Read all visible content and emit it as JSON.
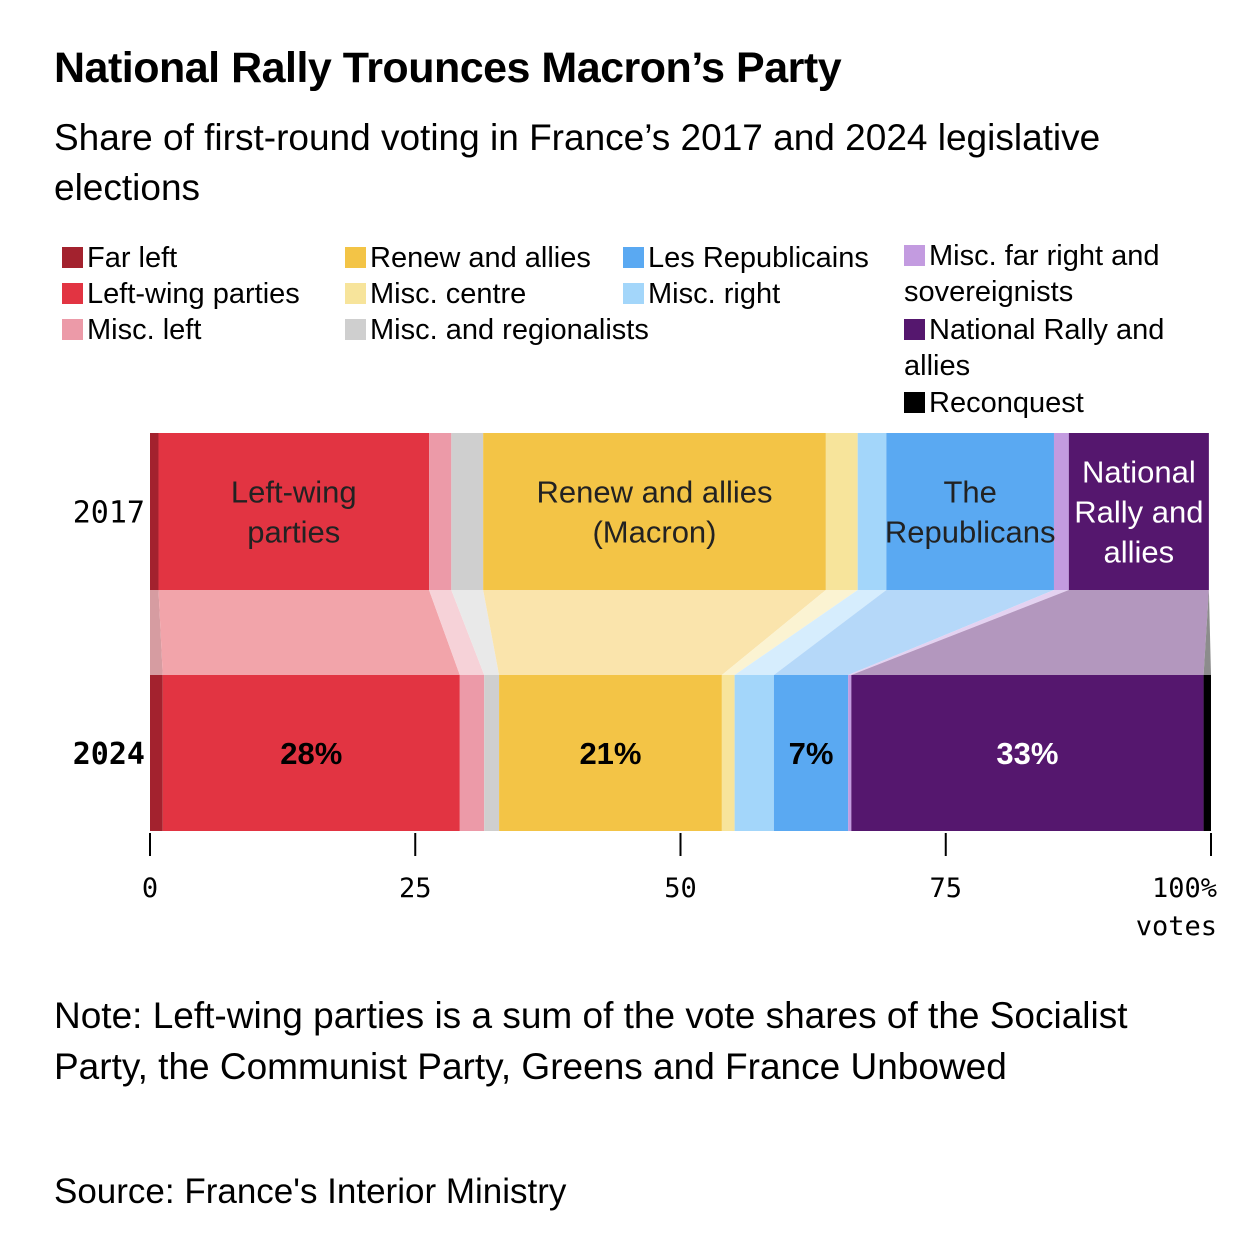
{
  "header": {
    "title": "National Rally Trounces Macron’s Party",
    "subtitle": "Share of first-round voting in France’s 2017 and 2024 legislative elections"
  },
  "legend": [
    {
      "label": "Far left",
      "color": "#a3222e"
    },
    {
      "label": "Left-wing parties",
      "color": "#e23442"
    },
    {
      "label": "Misc. left",
      "color": "#ec9aa8"
    },
    {
      "label": "Renew and allies",
      "color": "#f3c446"
    },
    {
      "label": "Misc. centre",
      "color": "#f7e49b"
    },
    {
      "label": "Misc. and regionalists",
      "color": "#cfcfcf"
    },
    {
      "label": "Les Republicains",
      "color": "#5aa9f2"
    },
    {
      "label": "Misc. right",
      "color": "#a3d6fa"
    },
    {
      "label": "Misc. far right and sovereignists",
      "color": "#c39be0"
    },
    {
      "label": "National Rally and allies",
      "color": "#55176e"
    },
    {
      "label": "Reconquest",
      "color": "#000000"
    }
  ],
  "chart_data": {
    "type": "bar",
    "orientation": "horizontal",
    "stacked": true,
    "categories": [
      "2017",
      "2024"
    ],
    "xlabel": "votes",
    "xlim": [
      0,
      100
    ],
    "x_ticks": [
      "0",
      "25",
      "50",
      "75",
      "100%"
    ],
    "series": [
      {
        "name": "Far left",
        "color": "#a3222e",
        "values": [
          0.8,
          1.2
        ]
      },
      {
        "name": "Left-wing parties",
        "color": "#e23442",
        "values": [
          25.5,
          28.0
        ]
      },
      {
        "name": "Misc. left",
        "color": "#ec9aa8",
        "values": [
          2.1,
          2.3
        ]
      },
      {
        "name": "Misc. and regionalists",
        "color": "#cfcfcf",
        "values": [
          3.0,
          1.4
        ]
      },
      {
        "name": "Renew and allies",
        "color": "#f3c446",
        "values": [
          32.3,
          21.0
        ]
      },
      {
        "name": "Misc. centre",
        "color": "#f7e49b",
        "values": [
          3.0,
          1.2
        ]
      },
      {
        "name": "Misc. right",
        "color": "#a3d6fa",
        "values": [
          2.7,
          3.7
        ]
      },
      {
        "name": "Les Republicains",
        "color": "#5aa9f2",
        "values": [
          15.8,
          7.0
        ]
      },
      {
        "name": "Misc. far right and sovereignists",
        "color": "#c39be0",
        "values": [
          1.4,
          0.3
        ]
      },
      {
        "name": "National Rally and allies",
        "color": "#55176e",
        "values": [
          13.2,
          33.2
        ]
      },
      {
        "name": "Reconquest",
        "color": "#000000",
        "values": [
          0,
          0.7
        ]
      }
    ],
    "segment_labels_2017": [
      {
        "series": "Left-wing parties",
        "text": "Left-wing parties"
      },
      {
        "series": "Renew and allies",
        "text": "Renew and allies (Macron)"
      },
      {
        "series": "Les Republicains",
        "text": "The Republicans"
      },
      {
        "series": "National Rally and allies",
        "text": "National Rally and allies"
      }
    ],
    "segment_labels_2024": [
      {
        "series": "Left-wing parties",
        "text": "28%"
      },
      {
        "series": "Renew and allies",
        "text": "21%"
      },
      {
        "series": "Les Republicains",
        "text": "7%"
      },
      {
        "series": "National Rally and allies",
        "text": "33%"
      }
    ]
  },
  "footer": {
    "note": "Note: Left-wing parties is a sum of the vote shares of the Socialist Party, the Communist Party, Greens and France Unbowed",
    "source": "Source: France's Interior Ministry"
  }
}
